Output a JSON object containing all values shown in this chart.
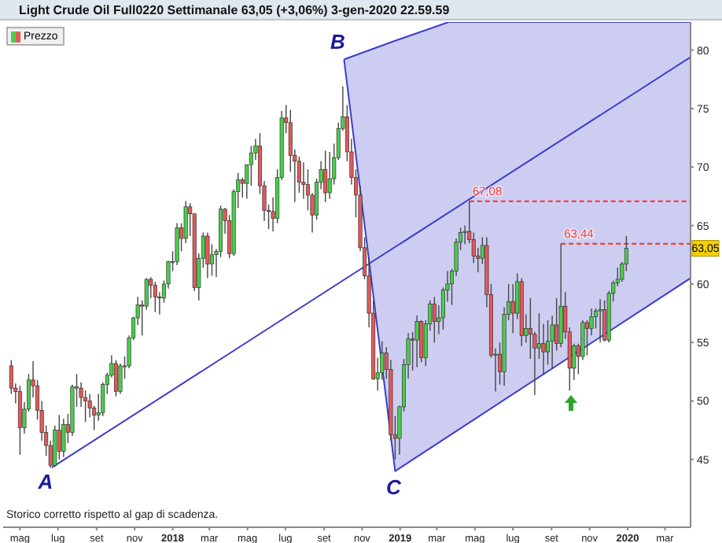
{
  "chart_data": {
    "type": "candlestick",
    "title": "Light Crude Oil Full0220 Settimanale 63,05 (+3,06%) 3-gen-2020 22.59.59",
    "annotations": [
      {
        "text": "A",
        "x": "2017-06-21",
        "y": 44.3
      },
      {
        "text": "B",
        "x": "2018-10-03",
        "y": 79.2
      },
      {
        "text": "C",
        "x": "2018-12-24",
        "y": 44.0
      },
      {
        "text": "67,08",
        "x": "2019-04-22",
        "y": 67.08
      },
      {
        "text": "63,44",
        "x": "2019-09-16",
        "y": 63.44
      },
      {
        "text": "63,05",
        "x": "2020-04-11",
        "y": 63.05
      },
      "Storico corretto rispetto al gap di scadenza."
    ],
    "legend": "top left",
    "grid": false,
    "xlim": [
      "2017-04-04",
      "2020-04-11"
    ],
    "xticks": [
      {
        "value": "2017-05-01",
        "label": "mag"
      },
      {
        "value": "2017-07-01",
        "label": "lug"
      },
      {
        "value": "2017-09-01",
        "label": "set"
      },
      {
        "value": "2017-11-01",
        "label": "nov"
      },
      {
        "value": "2018-01-01",
        "label": "2018"
      },
      {
        "value": "2018-03-01",
        "label": "mar"
      },
      {
        "value": "2018-05-01",
        "label": "mag"
      },
      {
        "value": "2018-07-01",
        "label": "lug"
      },
      {
        "value": "2018-09-01",
        "label": "set"
      },
      {
        "value": "2018-11-01",
        "label": "nov"
      },
      {
        "value": "2019-01-01",
        "label": "2019"
      },
      {
        "value": "2019-03-01",
        "label": "mar"
      },
      {
        "value": "2019-05-01",
        "label": "mag"
      },
      {
        "value": "2019-07-01",
        "label": "lug"
      },
      {
        "value": "2019-09-01",
        "label": "set"
      },
      {
        "value": "2019-11-01",
        "label": "nov"
      },
      {
        "value": "2020-01-01",
        "label": "2020"
      },
      {
        "value": "2020-03-01",
        "label": "mar"
      }
    ],
    "ylim": [
      39.2,
      82.4
    ],
    "yticks": [
      45,
      50,
      55,
      60,
      65,
      70,
      75,
      80
    ],
    "series": [
      {
        "type": "line",
        "color": "#3d3dcc",
        "x": [
          "2018-10-03",
          "2018-12-24",
          "2019-03-20",
          "2020-04-11"
        ],
        "values": [
          79.2,
          44.0,
          47.0,
          60.5
        ],
        "lower": [
          79.2,
          44.0,
          47.0,
          60.5
        ],
        "upper": [
          79.2,
          80.8,
          82.4,
          82.4
        ]
      },
      {
        "type": "line",
        "color": "#3d3dcc",
        "x": [
          "2017-06-21",
          "2020-04-11"
        ],
        "values": [
          44.3,
          79.4
        ]
      },
      {
        "type": "line",
        "color": "#ff2a2a",
        "line_style": "dashed",
        "x": [
          "2019-04-22",
          "2020-04-11"
        ],
        "values": [
          67.08,
          67.08
        ]
      },
      {
        "type": "line",
        "color": "#ff2a2a",
        "line_style": "dashed",
        "x": [
          "2019-09-16",
          "2020-04-11"
        ],
        "values": [
          63.44,
          63.44
        ]
      },
      {
        "type": "candlestick",
        "name": "Prezzo",
        "colors": [
          "#e05a5a",
          "#e05a5a",
          "#e05a5a",
          "#4ccc4c",
          "#4ccc4c",
          "#e05a5a",
          "#e05a5a",
          "#e05a5a",
          "#e05a5a",
          "#e05a5a",
          "#4ccc4c",
          "#e05a5a",
          "#4ccc4c",
          "#e05a5a",
          "#4ccc4c",
          "#e05a5a",
          "#e05a5a",
          "#e05a5a",
          "#e05a5a",
          "#e05a5a",
          "#4ccc4c",
          "#4ccc4c",
          "#4ccc4c",
          "#4ccc4c",
          "#e05a5a",
          "#4ccc4c",
          "#4ccc4c",
          "#4ccc4c",
          "#4ccc4c",
          "#4ccc4c",
          "#e05a5a",
          "#4ccc4c",
          "#e05a5a",
          "#e05a5a",
          "#e05a5a",
          "#4ccc4c",
          "#4ccc4c",
          "#4ccc4c",
          "#4ccc4c",
          "#e05a5a",
          "#4ccc4c",
          "#e05a5a",
          "#e05a5a",
          "#4ccc4c",
          "#4ccc4c",
          "#e05a5a",
          "#4ccc4c",
          "#4ccc4c",
          "#4ccc4c",
          "#e05a5a",
          "#e05a5a",
          "#4ccc4c",
          "#4ccc4c",
          "#e05a5a",
          "#4ccc4c",
          "#4ccc4c",
          "#4ccc4c",
          "#e05a5a",
          "#e05a5a",
          "#e05a5a",
          "#e05a5a",
          "#4ccc4c",
          "#4ccc4c",
          "#e05a5a",
          "#e05a5a",
          "#e05a5a",
          "#e05a5a",
          "#e05a5a",
          "#e05a5a",
          "#e05a5a",
          "#4ccc4c",
          "#4ccc4c",
          "#e05a5a",
          "#4ccc4c",
          "#4ccc4c",
          "#4ccc4c",
          "#4ccc4c",
          "#e05a5a",
          "#e05a5a",
          "#e05a5a",
          "#e05a5a",
          "#e05a5a",
          "#e05a5a",
          "#e05a5a",
          "#4ccc4c",
          "#4ccc4c",
          "#e05a5a",
          "#e05a5a",
          "#e05a5a",
          "#4ccc4c",
          "#4ccc4c",
          "#4ccc4c",
          "#e05a5a",
          "#4ccc4c",
          "#e05a5a",
          "#4ccc4c",
          "#4ccc4c",
          "#e05a5a",
          "#4ccc4c",
          "#4ccc4c",
          "#4ccc4c",
          "#4ccc4c",
          "#4ccc4c",
          "#4ccc4c",
          "#4ccc4c",
          "#e05a5a",
          "#e05a5a",
          "#e05a5a",
          "#4ccc4c",
          "#e05a5a",
          "#e05a5a",
          "#4ccc4c",
          "#e05a5a",
          "#4ccc4c",
          "#4ccc4c",
          "#e05a5a",
          "#4ccc4c",
          "#e05a5a",
          "#4ccc4c",
          "#e05a5a",
          "#e05a5a",
          "#4ccc4c",
          "#e05a5a",
          "#4ccc4c",
          "#4ccc4c",
          "#e05a5a",
          "#4ccc4c",
          "#e05a5a",
          "#e05a5a",
          "#4ccc4c",
          "#e05a5a",
          "#4ccc4c",
          "#e05a5a",
          "#4ccc4c",
          "#4ccc4c",
          "#4ccc4c",
          "#e05a5a",
          "#4ccc4c",
          "#4ccc4c",
          "#4ccc4c",
          "#4ccc4c",
          "#4ccc4c"
        ],
        "x": [
          "2017-04-17",
          "2017-04-24",
          "2017-05-01",
          "2017-05-08",
          "2017-05-15",
          "2017-05-22",
          "2017-05-29",
          "2017-06-05",
          "2017-06-12",
          "2017-06-19",
          "2017-06-26",
          "2017-07-03",
          "2017-07-10",
          "2017-07-17",
          "2017-07-24",
          "2017-07-31",
          "2017-08-07",
          "2017-08-14",
          "2017-08-21",
          "2017-08-28",
          "2017-09-04",
          "2017-09-11",
          "2017-09-18",
          "2017-09-25",
          "2017-10-02",
          "2017-10-09",
          "2017-10-16",
          "2017-10-23",
          "2017-10-30",
          "2017-11-06",
          "2017-11-13",
          "2017-11-20",
          "2017-11-27",
          "2017-12-04",
          "2017-12-11",
          "2017-12-18",
          "2017-12-25",
          "2018-01-01",
          "2018-01-08",
          "2018-01-15",
          "2018-01-22",
          "2018-01-29",
          "2018-02-05",
          "2018-02-12",
          "2018-02-19",
          "2018-02-26",
          "2018-03-05",
          "2018-03-12",
          "2018-03-19",
          "2018-03-26",
          "2018-04-02",
          "2018-04-09",
          "2018-04-16",
          "2018-04-23",
          "2018-04-30",
          "2018-05-07",
          "2018-05-14",
          "2018-05-21",
          "2018-05-28",
          "2018-06-04",
          "2018-06-11",
          "2018-06-18",
          "2018-06-25",
          "2018-07-02",
          "2018-07-09",
          "2018-07-16",
          "2018-07-23",
          "2018-07-30",
          "2018-08-06",
          "2018-08-13",
          "2018-08-20",
          "2018-08-27",
          "2018-09-03",
          "2018-09-10",
          "2018-09-17",
          "2018-09-24",
          "2018-10-01",
          "2018-10-08",
          "2018-10-15",
          "2018-10-22",
          "2018-10-29",
          "2018-11-05",
          "2018-11-12",
          "2018-11-19",
          "2018-11-26",
          "2018-12-03",
          "2018-12-10",
          "2018-12-17",
          "2018-12-24",
          "2018-12-31",
          "2019-01-07",
          "2019-01-14",
          "2019-01-21",
          "2019-01-28",
          "2019-02-04",
          "2019-02-11",
          "2019-02-18",
          "2019-02-25",
          "2019-03-04",
          "2019-03-11",
          "2019-03-18",
          "2019-03-25",
          "2019-04-01",
          "2019-04-08",
          "2019-04-15",
          "2019-04-22",
          "2019-04-29",
          "2019-05-06",
          "2019-05-13",
          "2019-05-20",
          "2019-05-27",
          "2019-06-03",
          "2019-06-10",
          "2019-06-17",
          "2019-06-24",
          "2019-07-01",
          "2019-07-08",
          "2019-07-15",
          "2019-07-22",
          "2019-07-29",
          "2019-08-05",
          "2019-08-12",
          "2019-08-19",
          "2019-08-26",
          "2019-09-02",
          "2019-09-09",
          "2019-09-16",
          "2019-09-23",
          "2019-09-30",
          "2019-10-07",
          "2019-10-14",
          "2019-10-21",
          "2019-10-28",
          "2019-11-04",
          "2019-11-11",
          "2019-11-18",
          "2019-11-25",
          "2019-12-02",
          "2019-12-09",
          "2019-12-16",
          "2019-12-23",
          "2019-12-30"
        ],
        "ohlc": [
          [
            53.0,
            53.5,
            50.6,
            51.1
          ],
          [
            51.1,
            51.5,
            49.8,
            50.8
          ],
          [
            50.8,
            51.3,
            45.4,
            47.7
          ],
          [
            47.7,
            49.9,
            47.2,
            49.3
          ],
          [
            49.3,
            52.3,
            49.1,
            51.8
          ],
          [
            51.8,
            53.4,
            50.3,
            51.3
          ],
          [
            51.3,
            51.8,
            48.4,
            49.2
          ],
          [
            49.2,
            50.0,
            46.6,
            47.3
          ],
          [
            47.3,
            47.9,
            45.3,
            46.2
          ],
          [
            46.2,
            46.6,
            44.3,
            44.5
          ],
          [
            44.5,
            47.9,
            44.4,
            47.5
          ],
          [
            47.5,
            48.8,
            45.0,
            45.7
          ],
          [
            45.7,
            48.5,
            45.2,
            48.0
          ],
          [
            48.0,
            48.9,
            46.4,
            47.3
          ],
          [
            47.3,
            51.4,
            47.0,
            51.2
          ],
          [
            51.2,
            52.3,
            49.5,
            51.1
          ],
          [
            51.1,
            51.6,
            49.5,
            50.3
          ],
          [
            50.3,
            50.9,
            48.2,
            50.0
          ],
          [
            50.0,
            50.6,
            48.6,
            49.4
          ],
          [
            49.4,
            49.6,
            47.5,
            48.8
          ],
          [
            48.8,
            50.6,
            48.3,
            49.0
          ],
          [
            49.0,
            51.6,
            48.7,
            51.4
          ],
          [
            51.4,
            52.4,
            50.6,
            52.2
          ],
          [
            52.2,
            53.9,
            52.0,
            53.2
          ],
          [
            53.2,
            53.5,
            50.4,
            50.8
          ],
          [
            50.8,
            53.2,
            50.6,
            53.0
          ],
          [
            53.0,
            53.8,
            51.9,
            53.0
          ],
          [
            53.0,
            55.6,
            52.8,
            55.4
          ],
          [
            55.4,
            57.2,
            55.2,
            57.1
          ],
          [
            57.1,
            58.9,
            56.5,
            58.2
          ],
          [
            58.2,
            58.6,
            55.6,
            58.1
          ],
          [
            58.1,
            60.5,
            57.8,
            60.4
          ],
          [
            60.4,
            60.6,
            58.8,
            59.9
          ],
          [
            59.9,
            60.2,
            57.6,
            58.9
          ],
          [
            58.9,
            59.3,
            57.4,
            58.8
          ],
          [
            58.8,
            60.3,
            58.4,
            60.0
          ],
          [
            60.0,
            62.0,
            59.6,
            61.9
          ],
          [
            61.9,
            62.8,
            61.1,
            61.9
          ],
          [
            61.9,
            65.2,
            61.6,
            64.8
          ],
          [
            64.8,
            65.2,
            62.8,
            63.9
          ],
          [
            63.9,
            67.1,
            63.5,
            66.6
          ],
          [
            66.6,
            66.9,
            64.1,
            66.0
          ],
          [
            66.0,
            66.0,
            59.4,
            59.7
          ],
          [
            59.7,
            62.6,
            58.6,
            62.2
          ],
          [
            62.2,
            64.4,
            61.4,
            64.1
          ],
          [
            64.1,
            64.4,
            60.5,
            61.7
          ],
          [
            61.7,
            63.4,
            60.7,
            62.5
          ],
          [
            62.5,
            63.0,
            60.6,
            62.8
          ],
          [
            62.8,
            66.7,
            62.3,
            66.4
          ],
          [
            66.4,
            66.5,
            64.3,
            65.4
          ],
          [
            65.4,
            65.9,
            62.2,
            62.6
          ],
          [
            62.6,
            68.1,
            62.4,
            67.9
          ],
          [
            67.9,
            69.5,
            66.5,
            68.9
          ],
          [
            68.9,
            69.1,
            67.4,
            68.6
          ],
          [
            68.6,
            70.2,
            67.3,
            70.2
          ],
          [
            70.2,
            71.8,
            68.4,
            71.2
          ],
          [
            71.2,
            72.4,
            70.6,
            71.8
          ],
          [
            71.8,
            72.9,
            67.7,
            68.4
          ],
          [
            68.4,
            68.8,
            65.4,
            66.3
          ],
          [
            66.3,
            66.8,
            64.7,
            66.2
          ],
          [
            66.2,
            67.4,
            64.5,
            65.6
          ],
          [
            65.6,
            69.8,
            65.2,
            69.1
          ],
          [
            69.1,
            74.8,
            68.9,
            74.2
          ],
          [
            74.2,
            75.3,
            72.9,
            73.8
          ],
          [
            73.8,
            74.9,
            69.6,
            71.0
          ],
          [
            71.0,
            71.5,
            67.0,
            70.5
          ],
          [
            70.5,
            70.9,
            67.8,
            68.7
          ],
          [
            68.7,
            70.4,
            67.3,
            68.5
          ],
          [
            68.5,
            69.8,
            66.3,
            67.6
          ],
          [
            67.6,
            67.8,
            64.4,
            65.9
          ],
          [
            65.9,
            69.0,
            65.5,
            68.7
          ],
          [
            68.7,
            70.5,
            68.1,
            69.8
          ],
          [
            69.8,
            71.4,
            67.0,
            67.8
          ],
          [
            67.8,
            71.3,
            67.3,
            69.0
          ],
          [
            69.0,
            72.0,
            68.5,
            70.8
          ],
          [
            70.8,
            73.8,
            70.6,
            73.3
          ],
          [
            73.3,
            76.9,
            73.1,
            74.3
          ],
          [
            74.3,
            75.3,
            70.5,
            71.3
          ],
          [
            71.3,
            72.4,
            68.5,
            69.1
          ],
          [
            69.1,
            69.8,
            65.7,
            67.6
          ],
          [
            67.6,
            68.4,
            62.8,
            63.1
          ],
          [
            63.1,
            64.0,
            60.4,
            60.7
          ],
          [
            60.7,
            62.3,
            56.3,
            57.5
          ],
          [
            57.5,
            58.6,
            51.8,
            51.9
          ],
          [
            51.9,
            53.7,
            50.9,
            52.4
          ],
          [
            52.4,
            55.1,
            51.8,
            54.1
          ],
          [
            54.1,
            54.6,
            51.9,
            52.7
          ],
          [
            52.7,
            53.5,
            46.6,
            47.1
          ],
          [
            47.1,
            48.7,
            45.0,
            46.8
          ],
          [
            46.8,
            49.6,
            45.4,
            49.5
          ],
          [
            49.5,
            53.6,
            49.1,
            53.1
          ],
          [
            53.1,
            55.8,
            51.9,
            55.3
          ],
          [
            55.3,
            55.9,
            52.6,
            55.2
          ],
          [
            55.2,
            57.3,
            52.9,
            56.8
          ],
          [
            56.8,
            56.9,
            53.3,
            53.7
          ],
          [
            53.7,
            56.9,
            53.0,
            56.6
          ],
          [
            56.6,
            58.6,
            56.0,
            58.3
          ],
          [
            58.3,
            58.9,
            55.0,
            56.8
          ],
          [
            56.8,
            58.2,
            55.7,
            57.1
          ],
          [
            57.1,
            59.7,
            56.1,
            59.5
          ],
          [
            59.5,
            61.1,
            58.5,
            60.0
          ],
          [
            60.0,
            61.3,
            58.2,
            61.1
          ],
          [
            61.1,
            63.9,
            60.7,
            63.6
          ],
          [
            63.6,
            64.8,
            62.9,
            64.4
          ],
          [
            64.4,
            65.0,
            63.4,
            64.5
          ],
          [
            64.5,
            67.08,
            63.5,
            63.8
          ],
          [
            63.8,
            64.4,
            61.8,
            62.4
          ],
          [
            62.4,
            63.1,
            61.0,
            62.2
          ],
          [
            62.2,
            64.0,
            61.7,
            63.3
          ],
          [
            63.3,
            64.0,
            58.0,
            59.1
          ],
          [
            59.1,
            60.0,
            53.7,
            53.9
          ],
          [
            53.9,
            54.5,
            50.8,
            54.0
          ],
          [
            54.0,
            55.0,
            51.4,
            52.5
          ],
          [
            52.5,
            58.0,
            51.3,
            57.4
          ],
          [
            57.4,
            60.0,
            56.9,
            58.5
          ],
          [
            58.5,
            60.0,
            55.8,
            57.5
          ],
          [
            57.5,
            60.9,
            57.0,
            60.2
          ],
          [
            60.2,
            60.5,
            54.7,
            55.6
          ],
          [
            55.6,
            57.4,
            55.0,
            56.2
          ],
          [
            56.2,
            58.8,
            53.6,
            55.7
          ],
          [
            55.7,
            55.9,
            50.5,
            54.5
          ],
          [
            54.5,
            57.5,
            53.6,
            54.9
          ],
          [
            54.9,
            56.6,
            52.3,
            54.2
          ],
          [
            54.2,
            56.9,
            53.1,
            55.1
          ],
          [
            55.1,
            57.3,
            52.8,
            56.5
          ],
          [
            56.5,
            58.8,
            54.3,
            54.9
          ],
          [
            54.9,
            63.44,
            54.6,
            58.1
          ],
          [
            58.1,
            59.3,
            55.3,
            55.9
          ],
          [
            55.9,
            56.3,
            50.9,
            52.8
          ],
          [
            52.8,
            54.9,
            51.8,
            54.7
          ],
          [
            54.7,
            54.9,
            52.3,
            53.8
          ],
          [
            53.8,
            56.9,
            53.5,
            56.7
          ],
          [
            56.7,
            56.9,
            53.9,
            56.2
          ],
          [
            56.2,
            57.9,
            55.6,
            57.2
          ],
          [
            57.2,
            57.9,
            56.2,
            57.7
          ],
          [
            57.7,
            58.7,
            55.0,
            57.8
          ],
          [
            57.8,
            58.6,
            55.1,
            55.2
          ],
          [
            55.2,
            59.4,
            55.0,
            59.2
          ],
          [
            59.2,
            60.3,
            58.5,
            60.1
          ],
          [
            60.1,
            61.4,
            59.8,
            60.4
          ],
          [
            60.4,
            61.9,
            60.2,
            61.7
          ],
          [
            61.7,
            64.1,
            61.1,
            63.05
          ]
        ]
      }
    ]
  }
}
